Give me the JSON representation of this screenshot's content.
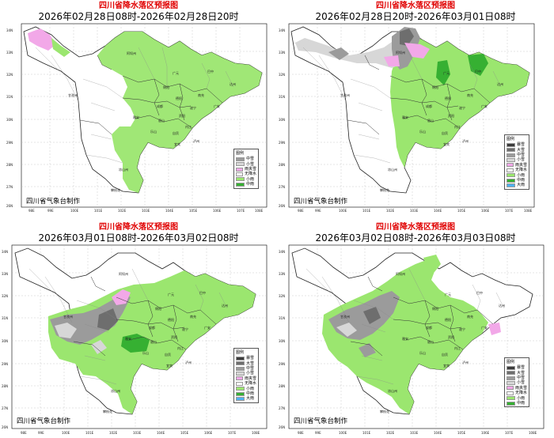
{
  "maps": [
    {
      "title": "四川省降水落区预报图",
      "period": "2026年02月28日08时-2026年02月28日20时",
      "legend_title": "图例",
      "legend": [
        {
          "label": "中雪",
          "color": "#9b9b9b"
        },
        {
          "label": "小雪",
          "color": "#d7d7d7"
        },
        {
          "label": "雨夹雪",
          "color": "#f2a8e8"
        },
        {
          "label": "无降水",
          "color": "#ffffff"
        },
        {
          "label": "小雨",
          "color": "#9be66f"
        },
        {
          "label": "中雨",
          "color": "#36b032"
        }
      ],
      "credit": "四川省气象台制作"
    },
    {
      "title": "四川省降水落区预报图",
      "period": "2026年02月28日20时-2026年03月01日08时",
      "legend_title": "图例",
      "legend": [
        {
          "label": "暴雪",
          "color": "#3c3c3c"
        },
        {
          "label": "大雪",
          "color": "#6e6e6e"
        },
        {
          "label": "中雪",
          "color": "#9b9b9b"
        },
        {
          "label": "小雪",
          "color": "#d7d7d7"
        },
        {
          "label": "雨夹雪",
          "color": "#f2a8e8"
        },
        {
          "label": "无降水",
          "color": "#ffffff"
        },
        {
          "label": "小雨",
          "color": "#9be66f"
        },
        {
          "label": "中雨",
          "color": "#36b032"
        },
        {
          "label": "大雨",
          "color": "#4fb1f0"
        }
      ],
      "credit": "四川省气象台制作"
    },
    {
      "title": "四川省降水落区预报图",
      "period": "2026年03月01日08时-2026年03月02日08时",
      "legend_title": "图例",
      "legend": [
        {
          "label": "暴雪",
          "color": "#3c3c3c"
        },
        {
          "label": "大雪",
          "color": "#6e6e6e"
        },
        {
          "label": "中雪",
          "color": "#9b9b9b"
        },
        {
          "label": "小雪",
          "color": "#d7d7d7"
        },
        {
          "label": "雨夹雪",
          "color": "#f2a8e8"
        },
        {
          "label": "无降水",
          "color": "#ffffff"
        },
        {
          "label": "小雨",
          "color": "#9be66f"
        },
        {
          "label": "中雨",
          "color": "#36b032"
        },
        {
          "label": "大雨",
          "color": "#4fb1f0"
        }
      ],
      "credit": "四川省气象台制作"
    },
    {
      "title": "四川省降水落区预报图",
      "period": "2026年03月02日08时-2026年03月03日08时",
      "legend_title": "图例",
      "legend": [
        {
          "label": "暴雪",
          "color": "#3c3c3c"
        },
        {
          "label": "大雪",
          "color": "#6e6e6e"
        },
        {
          "label": "中雪",
          "color": "#9b9b9b"
        },
        {
          "label": "小雪",
          "color": "#d7d7d7"
        },
        {
          "label": "雨夹雪",
          "color": "#f2a8e8"
        },
        {
          "label": "无降水",
          "color": "#ffffff"
        },
        {
          "label": "小雨",
          "color": "#9be66f"
        },
        {
          "label": "中雨",
          "color": "#36b032"
        }
      ],
      "credit": "四川省气象台制作"
    }
  ],
  "lat_labels": [
    "34N",
    "33N",
    "32N",
    "31N",
    "30N",
    "29N",
    "28N",
    "27N",
    "26N"
  ],
  "lon_labels": [
    "98E",
    "99E",
    "100E",
    "101E",
    "102E",
    "103E",
    "104E",
    "105E",
    "106E",
    "107E",
    "108E"
  ],
  "city_labels": [
    "阿坝州",
    "甘孜州",
    "广元",
    "巴中",
    "达州",
    "绵阳",
    "南充",
    "德阳",
    "成都",
    "遂宁",
    "广安",
    "雅安",
    "眉山",
    "资阳",
    "内江",
    "乐山",
    "自贡",
    "宜宾",
    "泸州",
    "凉山州",
    "攀枝花"
  ]
}
